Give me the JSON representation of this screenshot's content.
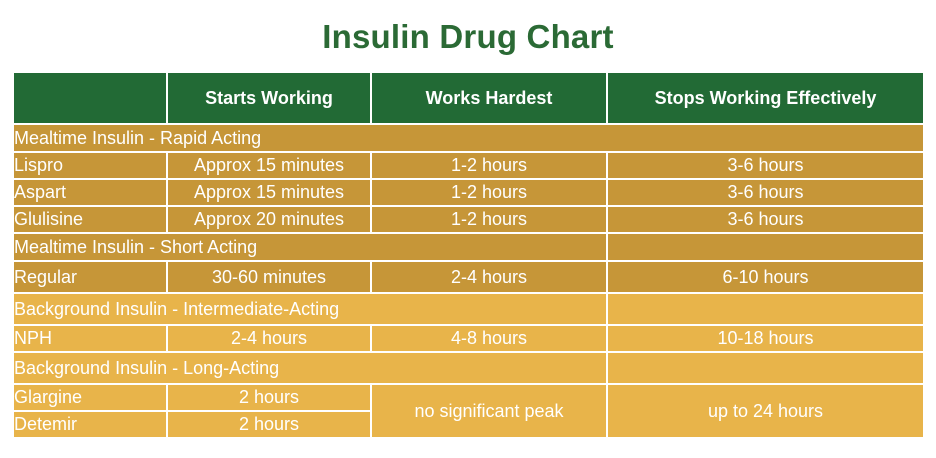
{
  "title": "Insulin Drug Chart",
  "headers": [
    "",
    "Starts Working",
    "Works Hardest",
    "Stops Working Effectively"
  ],
  "sections": {
    "rapid": "Mealtime Insulin - Rapid Acting",
    "short": "Mealtime Insulin - Short Acting",
    "intermediate": "Background Insulin - Intermediate-Acting",
    "long": "Background Insulin - Long-Acting"
  },
  "rows": {
    "lispro": {
      "name": "Lispro",
      "starts": "Approx 15 minutes",
      "hardest": "1-2 hours",
      "stops": "3-6 hours"
    },
    "aspart": {
      "name": "Aspart",
      "starts": "Approx 15 minutes",
      "hardest": "1-2 hours",
      "stops": "3-6 hours"
    },
    "glulisine": {
      "name": "Glulisine",
      "starts": "Approx 20 minutes",
      "hardest": "1-2 hours",
      "stops": "3-6 hours"
    },
    "regular": {
      "name": "Regular",
      "starts": "30-60 minutes",
      "hardest": "2-4 hours",
      "stops": "6-10 hours"
    },
    "nph": {
      "name": "NPH",
      "starts": "2-4 hours",
      "hardest": "4-8 hours",
      "stops": "10-18 hours"
    },
    "glargine": {
      "name": "Glargine",
      "starts": "2 hours"
    },
    "detemir": {
      "name": "Detemir",
      "starts": "2 hours"
    },
    "long_shared": {
      "hardest": "no significant peak",
      "stops": "up to 24 hours"
    }
  },
  "colors": {
    "title": "#2b6a35",
    "header_bg": "#226a35",
    "dark_row": "#c69638",
    "light_row": "#e8b44a"
  }
}
